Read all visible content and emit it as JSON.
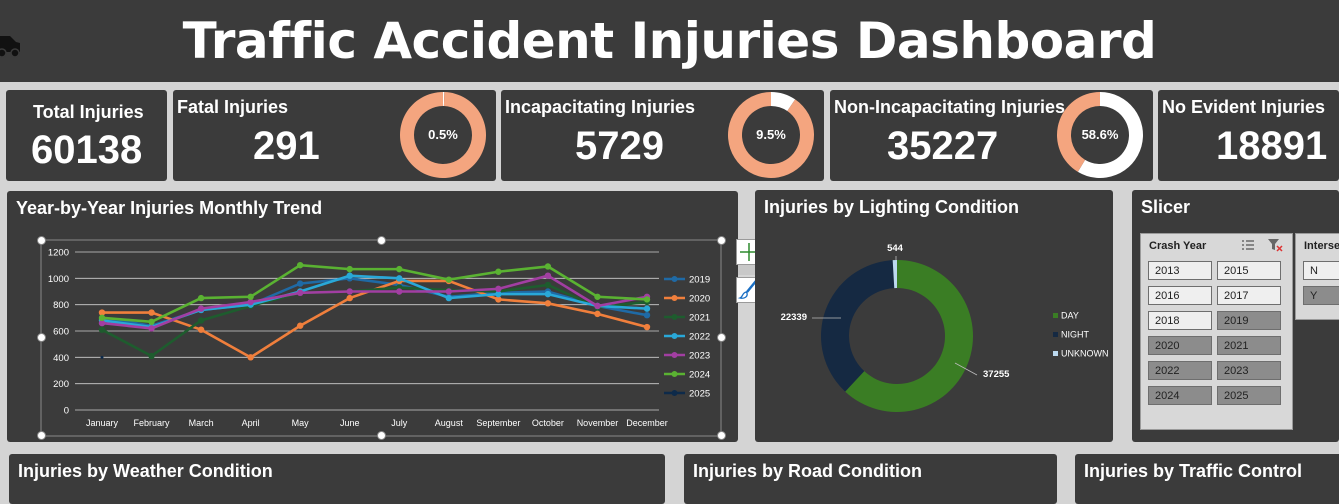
{
  "header": {
    "title": "Traffic Accident Injuries Dashboard"
  },
  "kpis": {
    "total": {
      "label": "Total Injuries",
      "value": "60138"
    },
    "fatal": {
      "label": "Fatal Injuries",
      "value": "291",
      "pct_label": "0.5%",
      "fraction": 0.005
    },
    "incap": {
      "label": "Incapacitating Injuries",
      "value": "5729",
      "pct_label": "9.5%",
      "fraction": 0.095
    },
    "nonincap": {
      "label": "Non-Incapacitating Injuries",
      "value": "35227",
      "pct_label": "58.6%",
      "fraction": 0.586
    },
    "noevident": {
      "label": "No Evident Injuries",
      "value": "18891"
    }
  },
  "colors": {
    "panel": "#3b3b3b",
    "accent": "#f4a57f",
    "ring": "#ffffff"
  },
  "trend": {
    "title": "Year-by-Year Injuries Monthly Trend"
  },
  "lighting": {
    "title": "Injuries by Lighting Condition"
  },
  "slicer": {
    "title": "Slicer",
    "crash_year_label": "Crash Year",
    "intersection_label": "Intersection",
    "years": [
      {
        "label": "2013",
        "selected": true
      },
      {
        "label": "2015",
        "selected": true
      },
      {
        "label": "2016",
        "selected": true
      },
      {
        "label": "2017",
        "selected": true
      },
      {
        "label": "2018",
        "selected": true
      },
      {
        "label": "2019",
        "selected": false
      },
      {
        "label": "2020",
        "selected": false
      },
      {
        "label": "2021",
        "selected": false
      },
      {
        "label": "2022",
        "selected": false
      },
      {
        "label": "2023",
        "selected": false
      },
      {
        "label": "2024",
        "selected": false
      },
      {
        "label": "2025",
        "selected": false
      }
    ],
    "intersection": [
      {
        "label": "N",
        "selected": true
      },
      {
        "label": "Y",
        "selected": false
      }
    ]
  },
  "bottom": {
    "weather": "Injuries by Weather Condition",
    "road": "Injuries by Road Condition",
    "traffic": "Injuries by Traffic Control"
  },
  "chart_data": [
    {
      "type": "line",
      "title": "Year-by-Year Injuries Monthly Trend",
      "categories": [
        "January",
        "February",
        "March",
        "April",
        "May",
        "June",
        "July",
        "August",
        "September",
        "October",
        "November",
        "December"
      ],
      "ylim": [
        0,
        1200
      ],
      "yticks": [
        0,
        200,
        400,
        600,
        800,
        1000,
        1200
      ],
      "grid": true,
      "legend_position": "right",
      "series": [
        {
          "name": "2019",
          "color": "#1f6aa5",
          "values": [
            700,
            640,
            760,
            800,
            960,
            1000,
            950,
            860,
            890,
            900,
            790,
            720
          ]
        },
        {
          "name": "2020",
          "color": "#f07f3c",
          "values": [
            740,
            740,
            610,
            400,
            640,
            850,
            980,
            980,
            840,
            810,
            730,
            630
          ]
        },
        {
          "name": "2021",
          "color": "#1e5c2e",
          "values": [
            610,
            410,
            680,
            790,
            890,
            900,
            930,
            910,
            900,
            950,
            780,
            820
          ]
        },
        {
          "name": "2022",
          "color": "#29a8d8",
          "values": [
            680,
            630,
            760,
            800,
            900,
            1020,
            1000,
            850,
            880,
            880,
            790,
            770
          ]
        },
        {
          "name": "2023",
          "color": "#a23ea2",
          "values": [
            660,
            620,
            770,
            820,
            890,
            900,
            900,
            900,
            920,
            1020,
            790,
            860
          ]
        },
        {
          "name": "2024",
          "color": "#5ab232",
          "values": [
            700,
            670,
            850,
            860,
            1100,
            1070,
            1070,
            990,
            1050,
            1090,
            860,
            840
          ]
        },
        {
          "name": "2025",
          "color": "#0d2a4a",
          "values": [
            400,
            null,
            null,
            null,
            null,
            null,
            null,
            null,
            null,
            null,
            null,
            null
          ]
        }
      ]
    },
    {
      "type": "pie",
      "title": "Injuries by Lighting Condition",
      "legend_position": "right",
      "labels": [
        "DAY",
        "NIGHT",
        "UNKNOWN"
      ],
      "values": [
        37255,
        22339,
        544
      ],
      "value_labels": [
        "37255",
        "22339",
        "544"
      ],
      "colors": [
        "#3a7d24",
        "#152942",
        "#bcd9ef"
      ]
    }
  ]
}
